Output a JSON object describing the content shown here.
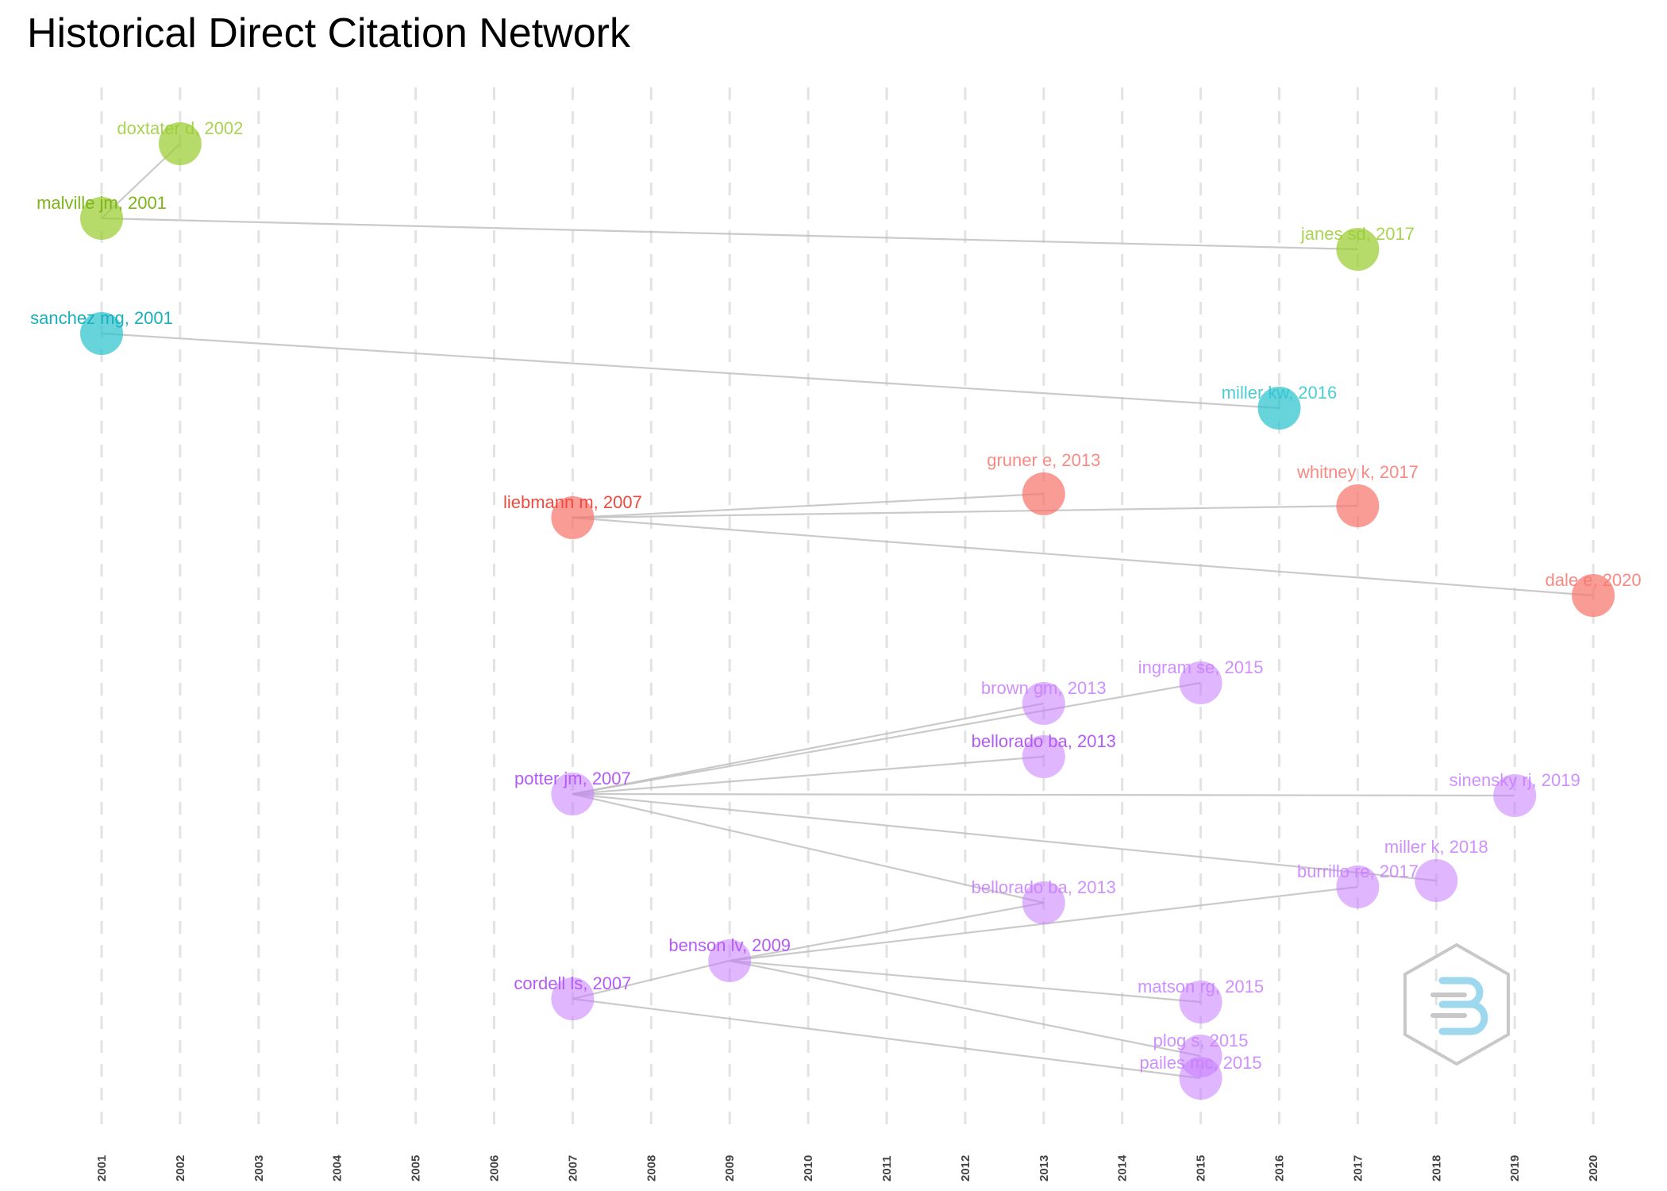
{
  "title": "Historical Direct Citation Network",
  "colors": {
    "green": "#9ACD32",
    "teal": "#2CC4CF",
    "red": "#F8766D",
    "purple": "#C77CFF",
    "edge": "#BDBDBD",
    "grid": "#E3E3E3"
  },
  "chart_data": {
    "type": "network",
    "x_axis": {
      "ticks": [
        "2001",
        "2002",
        "2003",
        "2004",
        "2005",
        "2006",
        "2007",
        "2008",
        "2009",
        "2010",
        "2011",
        "2012",
        "2013",
        "2014",
        "2015",
        "2016",
        "2017",
        "2018",
        "2019",
        "2020"
      ],
      "grid": "dashed vertical"
    },
    "nodes": [
      {
        "id": "doxtater",
        "label": "doxtater d, 2002",
        "year": 2002,
        "cluster": "green"
      },
      {
        "id": "malville",
        "label": "malville jm, 2001",
        "year": 2001,
        "cluster": "green"
      },
      {
        "id": "janes",
        "label": "janes sd, 2017",
        "year": 2017,
        "cluster": "green"
      },
      {
        "id": "sanchez",
        "label": "sanchez mg, 2001",
        "year": 2001,
        "cluster": "teal"
      },
      {
        "id": "millerkw",
        "label": "miller kw, 2016",
        "year": 2016,
        "cluster": "teal"
      },
      {
        "id": "liebmann",
        "label": "liebmann m, 2007",
        "year": 2007,
        "cluster": "red"
      },
      {
        "id": "gruner",
        "label": "gruner e, 2013",
        "year": 2013,
        "cluster": "red"
      },
      {
        "id": "whitney",
        "label": "whitney k, 2017",
        "year": 2017,
        "cluster": "red"
      },
      {
        "id": "dale",
        "label": "dale e, 2020",
        "year": 2020,
        "cluster": "red"
      },
      {
        "id": "ingram",
        "label": "ingram se, 2015",
        "year": 2015,
        "cluster": "purple"
      },
      {
        "id": "brown",
        "label": "brown gm, 2013",
        "year": 2013,
        "cluster": "purple"
      },
      {
        "id": "bellorado1",
        "label": "bellorado ba, 2013",
        "year": 2013,
        "cluster": "purple"
      },
      {
        "id": "potter",
        "label": "potter jm, 2007",
        "year": 2007,
        "cluster": "purple"
      },
      {
        "id": "sinensky",
        "label": "sinensky rj, 2019",
        "year": 2019,
        "cluster": "purple"
      },
      {
        "id": "millerk",
        "label": "miller k, 2018",
        "year": 2018,
        "cluster": "purple"
      },
      {
        "id": "burrillo",
        "label": "burrillo re, 2017",
        "year": 2017,
        "cluster": "purple"
      },
      {
        "id": "bellorado2",
        "label": "bellorado ba, 2013",
        "year": 2013,
        "cluster": "purple"
      },
      {
        "id": "benson",
        "label": "benson lv, 2009",
        "year": 2009,
        "cluster": "purple"
      },
      {
        "id": "cordell",
        "label": "cordell ls, 2007",
        "year": 2007,
        "cluster": "purple"
      },
      {
        "id": "matson",
        "label": "matson rg, 2015",
        "year": 2015,
        "cluster": "purple"
      },
      {
        "id": "plog",
        "label": "plog s, 2015",
        "year": 2015,
        "cluster": "purple"
      },
      {
        "id": "pailes",
        "label": "pailes mc, 2015",
        "year": 2015,
        "cluster": "purple"
      }
    ],
    "edges": [
      [
        "malville",
        "doxtater"
      ],
      [
        "malville",
        "janes"
      ],
      [
        "sanchez",
        "millerkw"
      ],
      [
        "liebmann",
        "gruner"
      ],
      [
        "liebmann",
        "whitney"
      ],
      [
        "liebmann",
        "dale"
      ],
      [
        "potter",
        "ingram"
      ],
      [
        "potter",
        "brown"
      ],
      [
        "potter",
        "bellorado1"
      ],
      [
        "potter",
        "sinensky"
      ],
      [
        "potter",
        "millerk"
      ],
      [
        "potter",
        "bellorado2"
      ],
      [
        "benson",
        "bellorado2"
      ],
      [
        "benson",
        "burrillo"
      ],
      [
        "benson",
        "matson"
      ],
      [
        "benson",
        "plog"
      ],
      [
        "cordell",
        "benson"
      ],
      [
        "cordell",
        "pailes"
      ]
    ]
  }
}
